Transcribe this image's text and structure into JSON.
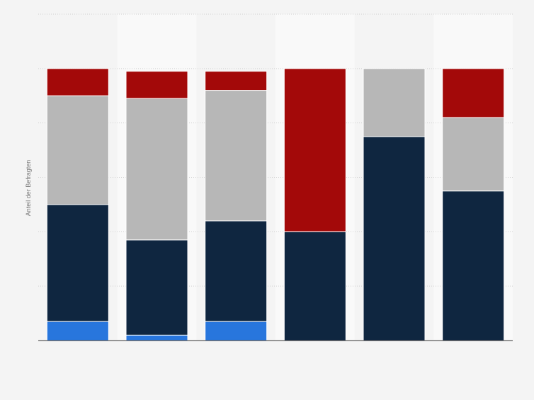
{
  "chart_data": {
    "type": "bar",
    "stacked": true,
    "ylabel": "Anteil der Befragten",
    "ylim": [
      0,
      120
    ],
    "grid": true,
    "categories": [
      "",
      "",
      "",
      "",
      "",
      ""
    ],
    "series": [
      {
        "color": "#2876dd",
        "values": [
          7,
          2,
          7,
          0,
          0,
          0
        ]
      },
      {
        "color": "#0f2640",
        "values": [
          43,
          35,
          37,
          40,
          75,
          55
        ]
      },
      {
        "color": "#b7b7b7",
        "values": [
          40,
          52,
          48,
          0,
          25,
          27
        ]
      },
      {
        "color": "#a30909",
        "values": [
          10,
          10,
          7,
          60,
          0,
          18
        ]
      }
    ],
    "colors": {
      "background": "#f4f4f4",
      "band": "#f9f9f9",
      "grid": "#d0d0d0",
      "axis": "#333333"
    }
  }
}
